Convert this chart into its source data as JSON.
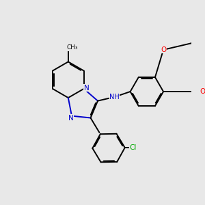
{
  "bg_color": "#e8e8e8",
  "bond_color": "#000000",
  "n_color": "#0000cc",
  "o_color": "#ff0000",
  "cl_color": "#00aa00",
  "lw": 1.4,
  "dbo": 0.055,
  "xlim": [
    0,
    10
  ],
  "ylim": [
    0,
    10
  ]
}
